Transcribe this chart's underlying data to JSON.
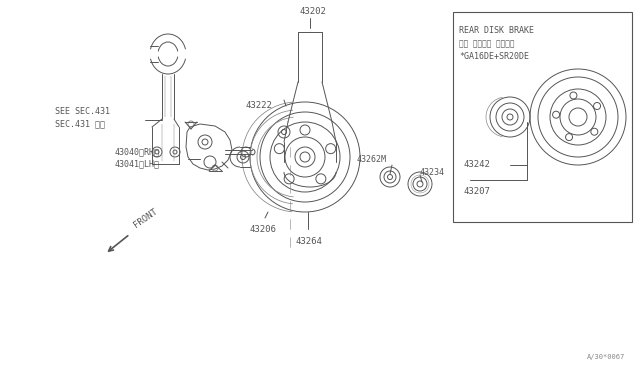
{
  "bg_color": "#ffffff",
  "line_color": "#555555",
  "thin_lc": "#888888",
  "diagram_id": "A/30*0067",
  "box_label_line1": "REAR DISK BRAKE",
  "box_label_line2": "リヤ ディスク ブレーキ",
  "box_label_line3": "*GA16DE+SR20DE",
  "label_43202": "43202",
  "label_43222": "43222",
  "label_43040": "43040（RH）",
  "label_43041": "43041（LH）",
  "label_43206": "43206",
  "label_43264": "43264",
  "label_43262M": "43262M",
  "label_43234": "43234",
  "label_43242": "43242",
  "label_43207": "43207",
  "label_see": "SEE SEC.431",
  "label_sec_jp": "SEC.431 参照",
  "label_front": "FRONT"
}
